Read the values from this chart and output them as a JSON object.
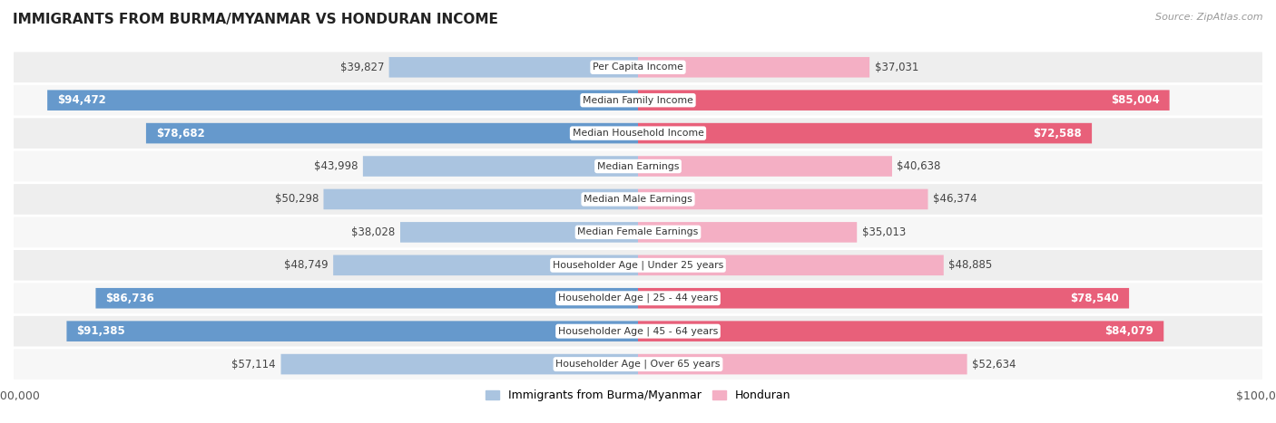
{
  "title": "IMMIGRANTS FROM BURMA/MYANMAR VS HONDURAN INCOME",
  "source": "Source: ZipAtlas.com",
  "categories": [
    "Per Capita Income",
    "Median Family Income",
    "Median Household Income",
    "Median Earnings",
    "Median Male Earnings",
    "Median Female Earnings",
    "Householder Age | Under 25 years",
    "Householder Age | 25 - 44 years",
    "Householder Age | 45 - 64 years",
    "Householder Age | Over 65 years"
  ],
  "burma_values": [
    39827,
    94472,
    78682,
    43998,
    50298,
    38028,
    48749,
    86736,
    91385,
    57114
  ],
  "honduran_values": [
    37031,
    85004,
    72588,
    40638,
    46374,
    35013,
    48885,
    78540,
    84079,
    52634
  ],
  "burma_labels": [
    "$39,827",
    "$94,472",
    "$78,682",
    "$43,998",
    "$50,298",
    "$38,028",
    "$48,749",
    "$86,736",
    "$91,385",
    "$57,114"
  ],
  "honduran_labels": [
    "$37,031",
    "$85,004",
    "$72,588",
    "$40,638",
    "$46,374",
    "$35,013",
    "$48,885",
    "$78,540",
    "$84,079",
    "$52,634"
  ],
  "max_value": 100000,
  "burma_color_light": "#aac4e0",
  "burma_color_dark": "#6699cc",
  "honduran_color_light": "#f4afc4",
  "honduran_color_dark": "#e8607a",
  "dark_threshold": 70000,
  "row_bg_even": "#eeeeee",
  "row_bg_odd": "#f7f7f7",
  "bar_height": 0.62,
  "label_fontsize": 8.5,
  "legend_burma": "Immigrants from Burma/Myanmar",
  "legend_honduran": "Honduran"
}
